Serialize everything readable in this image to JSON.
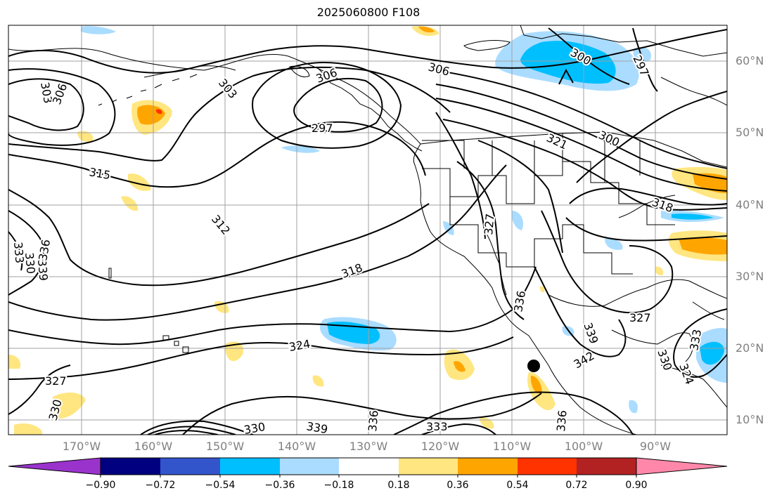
{
  "title": "2025060800 F108",
  "lat_labels": [
    "60°N",
    "50°N",
    "40°N",
    "30°N",
    "20°N",
    "10°N"
  ],
  "lon_labels": [
    "170°W",
    "160°W",
    "150°W",
    "140°W",
    "130°W",
    "120°W",
    "110°W",
    "100°W",
    "90°W"
  ],
  "colorbar": {
    "labels": [
      "−0.90",
      "−0.72",
      "−0.54",
      "−0.36",
      "−0.18",
      "0.18",
      "0.36",
      "0.54",
      "0.72",
      "0.90"
    ],
    "colors": [
      "#9a33cc",
      "#000080",
      "#3355cc",
      "#00bfff",
      "#aadcff",
      "#ffffff",
      "#ffe680",
      "#ffa500",
      "#ff3300",
      "#b22222",
      "#ff88aa"
    ]
  },
  "contour_labels": [
    "303",
    "306",
    "303",
    "306",
    "297",
    "315",
    "312",
    "318",
    "324",
    "327",
    "330",
    "333",
    "330",
    "339",
    "336",
    "333",
    "339",
    "336",
    "339",
    "342",
    "327",
    "330",
    "300",
    "297",
    "306",
    "321",
    "300",
    "318",
    "327",
    "336",
    "333",
    "330",
    "324",
    "336"
  ],
  "marker": {
    "label": "station-marker"
  }
}
